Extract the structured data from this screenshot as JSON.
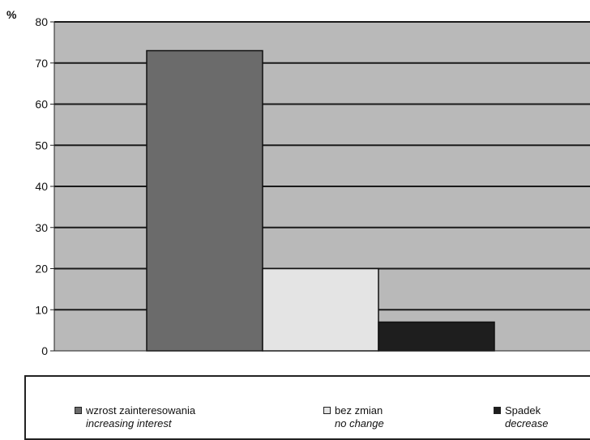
{
  "chart_data": {
    "type": "bar",
    "unit_label": "%",
    "ylim": [
      0,
      80
    ],
    "ytick_step": 10,
    "grid": true,
    "legend_position": "bottom",
    "categories": [
      "wzrost zainteresowania",
      "bez zmian",
      "Spadek"
    ],
    "categories_translation": [
      "increasing interest",
      "no change",
      "decrease"
    ],
    "values": [
      73,
      20,
      7
    ],
    "colors": [
      "#6b6b6b",
      "#e4e4e4",
      "#1e1e1e"
    ],
    "plot_background": "#b9b9b9"
  }
}
